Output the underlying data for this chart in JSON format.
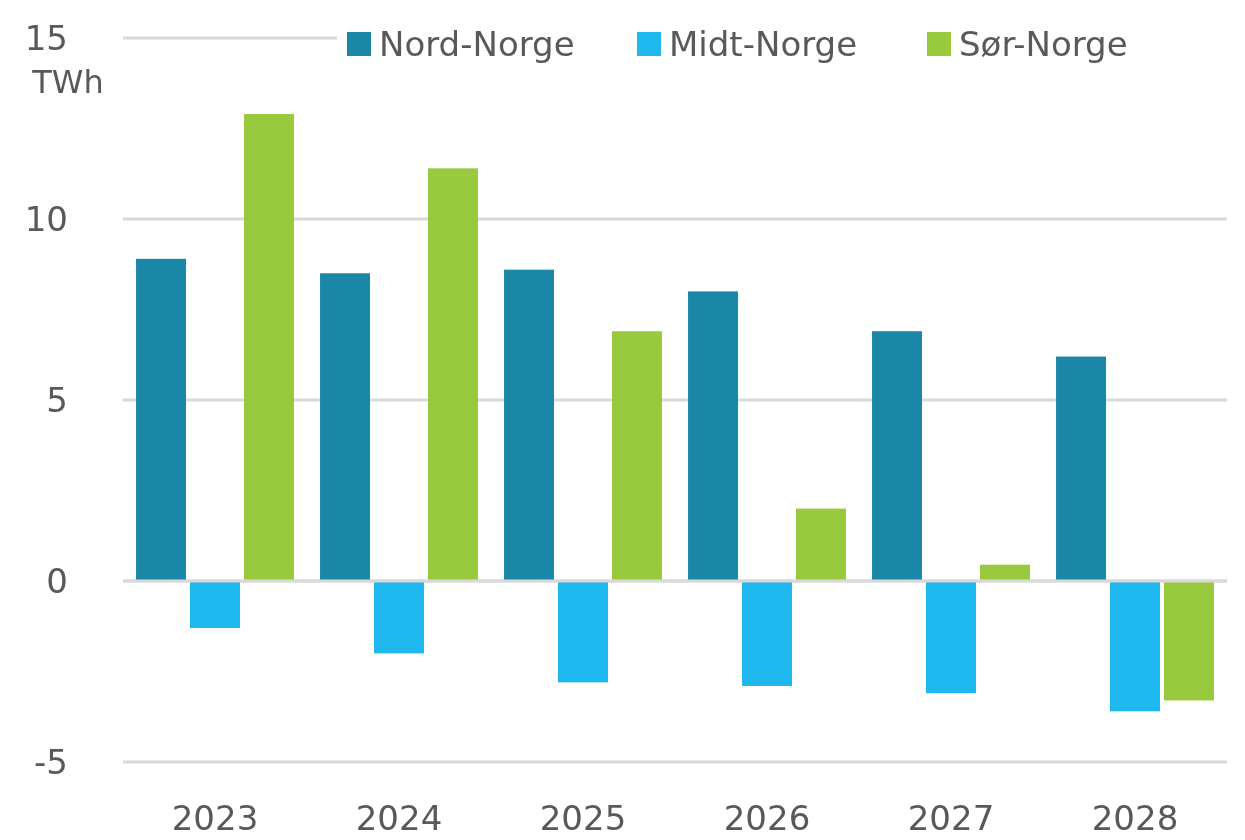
{
  "chart_data": {
    "type": "bar",
    "ylabel": "TWh",
    "categories": [
      "2023",
      "2024",
      "2025",
      "2026",
      "2027",
      "2028"
    ],
    "series": [
      {
        "name": "Nord-Norge",
        "color": "#1a87a6",
        "values": [
          8.9,
          8.5,
          8.6,
          8.0,
          6.9,
          6.2
        ]
      },
      {
        "name": "Midt-Norge",
        "color": "#1eb8ee",
        "values": [
          -1.3,
          -2.0,
          -2.8,
          -2.9,
          -3.1,
          -3.6
        ]
      },
      {
        "name": "Sør-Norge",
        "color": "#99c93c",
        "values": [
          12.9,
          11.4,
          6.9,
          2.0,
          0.45,
          -3.3
        ]
      }
    ],
    "ylim": [
      -5,
      15
    ],
    "yticks": [
      -5,
      0,
      5,
      10,
      15
    ],
    "grid": "y",
    "legend": "top right"
  }
}
